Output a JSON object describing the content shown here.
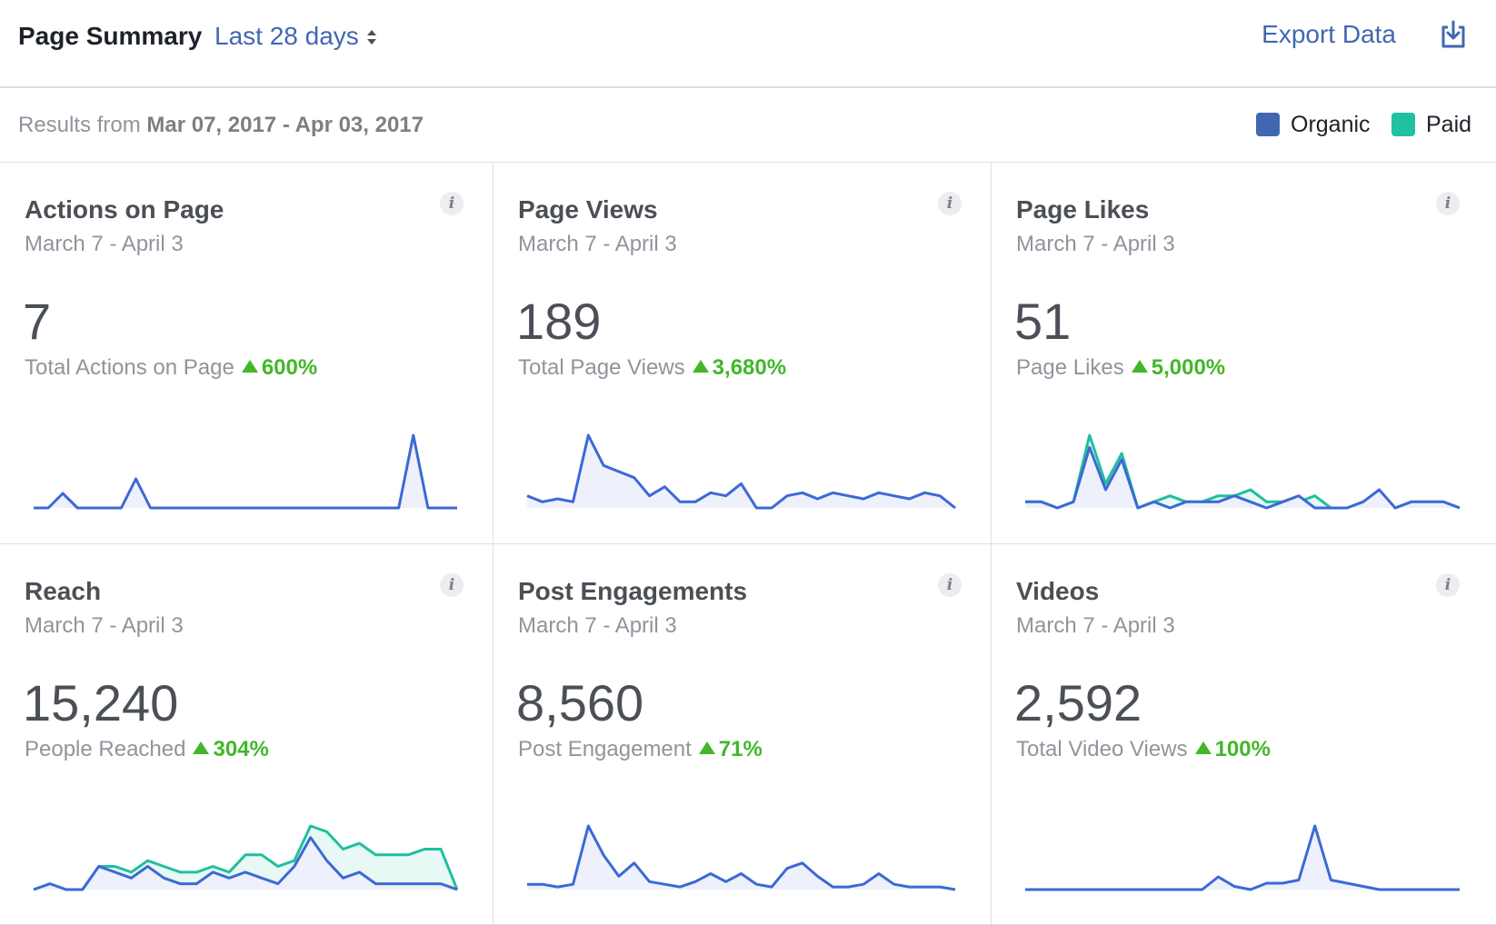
{
  "header": {
    "title": "Page Summary",
    "range_label": "Last 28 days",
    "export_label": "Export Data"
  },
  "results": {
    "prefix": "Results from",
    "range": "Mar 07, 2017 - Apr 03, 2017"
  },
  "legend": {
    "organic": {
      "label": "Organic",
      "color": "#4267b2"
    },
    "paid": {
      "label": "Paid",
      "color": "#20c1a3"
    }
  },
  "colors": {
    "organic_line": "#3b69d6",
    "paid_line": "#1fbf9f",
    "organic_fill": "#eef1fb",
    "paid_fill": "#e8f8f4",
    "positive": "#42b72a"
  },
  "cards": [
    {
      "title": "Actions on Page",
      "period": "March 7 - April 3",
      "value": "7",
      "metric_label": "Total Actions on Page",
      "change": "600%",
      "organic": [
        0,
        0,
        1,
        0,
        0,
        0,
        0,
        2,
        0,
        0,
        0,
        0,
        0,
        0,
        0,
        0,
        0,
        0,
        0,
        0,
        0,
        0,
        0,
        0,
        0,
        0,
        5,
        0,
        0,
        0
      ],
      "paid": []
    },
    {
      "title": "Page Views",
      "period": "March 7 - April 3",
      "value": "189",
      "metric_label": "Total Page Views",
      "change": "3,680%",
      "organic": [
        4,
        2,
        3,
        2,
        24,
        14,
        12,
        10,
        4,
        7,
        2,
        2,
        5,
        4,
        8,
        0,
        0,
        4,
        5,
        3,
        5,
        4,
        3,
        5,
        4,
        3,
        5,
        4,
        0
      ],
      "paid": []
    },
    {
      "title": "Page Likes",
      "period": "March 7 - April 3",
      "value": "51",
      "metric_label": "Page Likes",
      "change": "5,000%",
      "organic": [
        1,
        1,
        0,
        1,
        10,
        3,
        8,
        0,
        1,
        0,
        1,
        1,
        1,
        2,
        1,
        0,
        1,
        2,
        0,
        0,
        0,
        1,
        3,
        0,
        1,
        1,
        1,
        0
      ],
      "paid": [
        1,
        1,
        0,
        1,
        12,
        4,
        9,
        0,
        1,
        2,
        1,
        1,
        2,
        2,
        3,
        1,
        1,
        1,
        2,
        0,
        0,
        1,
        2,
        0,
        1,
        1,
        1,
        0
      ]
    },
    {
      "title": "Reach",
      "period": "March 7 - April 3",
      "value": "15,240",
      "metric_label": "People Reached",
      "change": "304%",
      "organic": [
        0,
        1,
        0,
        0,
        4,
        3,
        2,
        4,
        2,
        1,
        1,
        3,
        2,
        3,
        2,
        1,
        4,
        9,
        5,
        2,
        3,
        1,
        1,
        1,
        1,
        1,
        0
      ],
      "paid": [
        0,
        1,
        0,
        0,
        4,
        4,
        3,
        5,
        4,
        3,
        3,
        4,
        3,
        6,
        6,
        4,
        5,
        11,
        10,
        7,
        8,
        6,
        6,
        6,
        7,
        7,
        0
      ]
    },
    {
      "title": "Post Engagements",
      "period": "March 7 - April 3",
      "value": "8,560",
      "metric_label": "Post Engagement",
      "change": "71%",
      "organic": [
        2,
        2,
        1,
        2,
        24,
        13,
        5,
        10,
        3,
        2,
        1,
        3,
        6,
        3,
        6,
        2,
        1,
        8,
        10,
        5,
        1,
        1,
        2,
        6,
        2,
        1,
        1,
        1,
        0
      ],
      "paid": []
    },
    {
      "title": "Videos",
      "period": "March 7 - April 3",
      "value": "2,592",
      "metric_label": "Total Video Views",
      "change": "100%",
      "organic": [
        0,
        0,
        0,
        0,
        0,
        0,
        0,
        0,
        0,
        0,
        0,
        0,
        4,
        1,
        0,
        2,
        2,
        3,
        20,
        3,
        2,
        1,
        0,
        0,
        0,
        0,
        0,
        0
      ],
      "paid": []
    }
  ]
}
